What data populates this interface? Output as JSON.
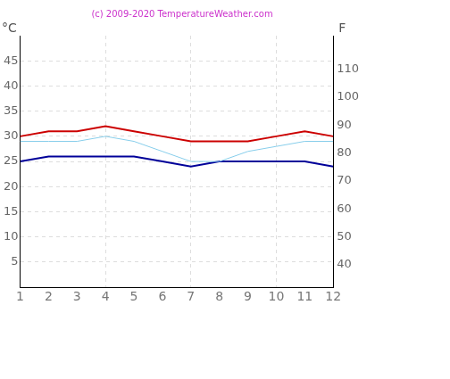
{
  "chart_data": {
    "type": "line",
    "title": "(c) 2009-2020 TemperatureWeather.com",
    "ylabel": "°C",
    "y2label": "F",
    "x": [
      1,
      2,
      3,
      4,
      5,
      6,
      7,
      8,
      9,
      10,
      11,
      12
    ],
    "xlim": [
      1,
      12
    ],
    "xticks": [
      1,
      2,
      3,
      4,
      5,
      6,
      7,
      8,
      9,
      10,
      11,
      12
    ],
    "ylim": [
      0,
      50
    ],
    "yticks": [
      5,
      10,
      15,
      20,
      25,
      30,
      35,
      40,
      45
    ],
    "y2lim": [
      32,
      122
    ],
    "y2ticks": [
      40,
      50,
      60,
      70,
      80,
      90,
      100,
      110
    ],
    "grid": true,
    "series": [
      {
        "color": "#cc0000",
        "values": [
          30,
          31,
          31,
          32,
          31,
          30,
          29,
          29,
          29,
          30,
          31,
          30
        ]
      },
      {
        "color": "#87ceeb",
        "values": [
          29,
          29,
          29,
          30,
          29,
          27,
          25,
          25,
          27,
          28,
          29,
          29
        ]
      },
      {
        "color": "#000099",
        "values": [
          25,
          26,
          26,
          26,
          26,
          25,
          24,
          25,
          25,
          25,
          25,
          24
        ]
      }
    ]
  }
}
